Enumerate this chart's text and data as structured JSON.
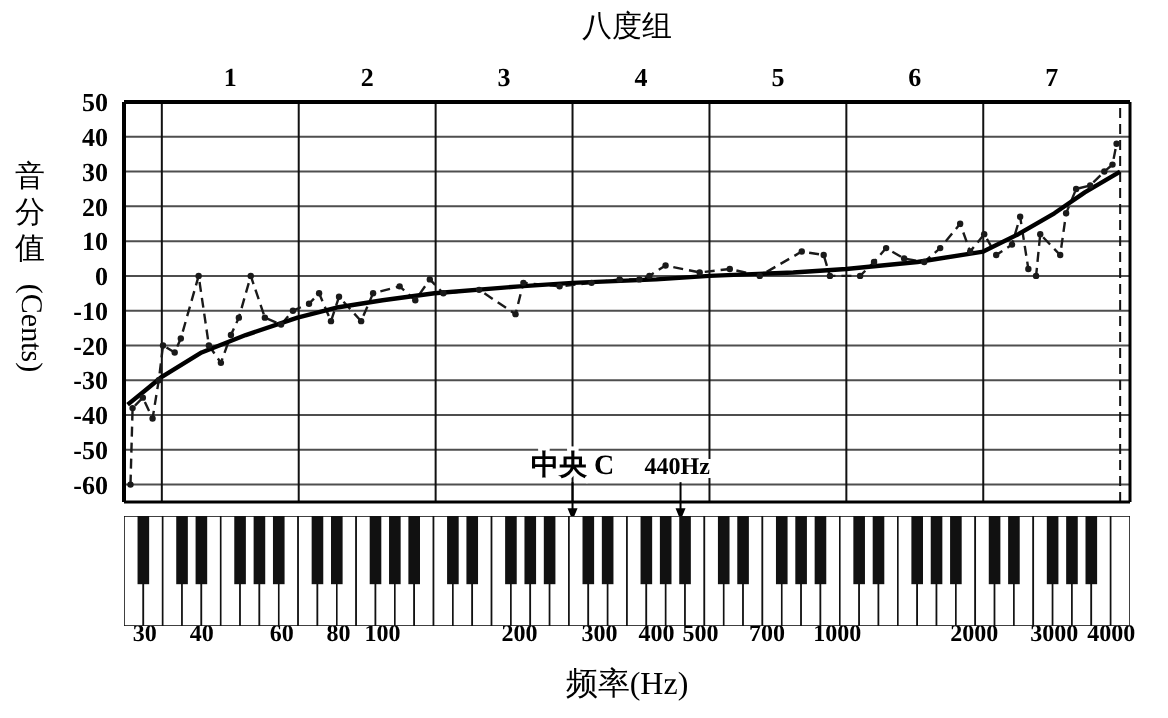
{
  "chart_data": {
    "type": "line",
    "title": "八度组",
    "xlabel": "频率(Hz)",
    "ylabel": "音分值(Cents)",
    "log": "x",
    "xlim": [
      27,
      4400
    ],
    "xticks": [
      30,
      40,
      60,
      80,
      100,
      200,
      300,
      400,
      500,
      700,
      1000,
      2000,
      3000,
      4000
    ],
    "ylim": [
      -65,
      50
    ],
    "yticks": [
      50,
      40,
      30,
      20,
      10,
      0,
      -10,
      -20,
      -30,
      -40,
      -50,
      -60
    ],
    "grid": "y",
    "ref_lines": [
      {
        "axis": "x",
        "value": 32.7,
        "color": "#111111"
      },
      {
        "axis": "x",
        "value": 65.4,
        "color": "#111111"
      },
      {
        "axis": "x",
        "value": 130.8,
        "color": "#111111"
      },
      {
        "axis": "x",
        "value": 261.6,
        "color": "#111111"
      },
      {
        "axis": "x",
        "value": 523.3,
        "color": "#111111"
      },
      {
        "axis": "x",
        "value": 1046.5,
        "color": "#111111"
      },
      {
        "axis": "x",
        "value": 2093,
        "color": "#111111"
      },
      {
        "axis": "x",
        "value": 4186,
        "color": "#111111",
        "line_style": "dashed"
      }
    ],
    "annotations": [
      {
        "text": "中央 C",
        "x": 261.6,
        "y": -57
      },
      "440Hz",
      "1",
      "2",
      "3",
      "4",
      "5",
      "6",
      "7"
    ],
    "series": [
      {
        "color": "#1a1a1a",
        "line_style": "dashed",
        "marker": "circle",
        "x": [
          27.9,
          28.2,
          29.7,
          31.2,
          32.2,
          32.9,
          34.9,
          36.0,
          39.4,
          41.5,
          44.1,
          46.4,
          48.3,
          51.3,
          55.1,
          59.8,
          63.5,
          68.9,
          72.5,
          77.0,
          80.2,
          89.7,
          95.3,
          109,
          118,
          127,
          136,
          163,
          196,
          204,
          245,
          288,
          332,
          367,
          386,
          419,
          498,
          580,
          675,
          835,
          933,
          963,
          1122,
          1204,
          1280,
          1402,
          1552,
          1683,
          1862,
          1959,
          2103,
          2235,
          2421,
          2523,
          2630,
          2735,
          2793,
          3090,
          3184,
          3350,
          3597,
          3864,
          4027,
          4111
        ],
        "values": [
          -60,
          -38,
          -35,
          -41,
          -30,
          -20,
          -22,
          -18,
          0,
          -20,
          -25,
          -17,
          -12,
          0,
          -12,
          -14,
          -10,
          -8,
          -5,
          -13,
          -6,
          -13,
          -5,
          -3,
          -7,
          -1,
          -5,
          -4,
          -11,
          -2,
          -3,
          -2,
          -1,
          -1,
          0,
          3,
          1,
          2,
          0,
          7,
          6,
          0,
          0,
          4,
          8,
          5,
          4,
          8,
          15,
          7,
          12,
          6,
          9,
          17,
          2,
          0,
          12,
          6,
          18,
          25,
          26,
          30,
          32,
          38
        ]
      },
      {
        "color": "#000000",
        "line_style": "solid",
        "marker": "none",
        "x": [
          27.5,
          30,
          32.7,
          40,
          50,
          65,
          80,
          100,
          130,
          200,
          261.6,
          400,
          523,
          800,
          1046,
          1500,
          2093,
          2500,
          3000,
          3500,
          4186
        ],
        "values": [
          -37,
          -33,
          -29,
          -22,
          -17,
          -12,
          -9,
          -7,
          -5,
          -3,
          -2,
          -1,
          0,
          1,
          2,
          4,
          7,
          12,
          18,
          24,
          30
        ]
      }
    ]
  }
}
